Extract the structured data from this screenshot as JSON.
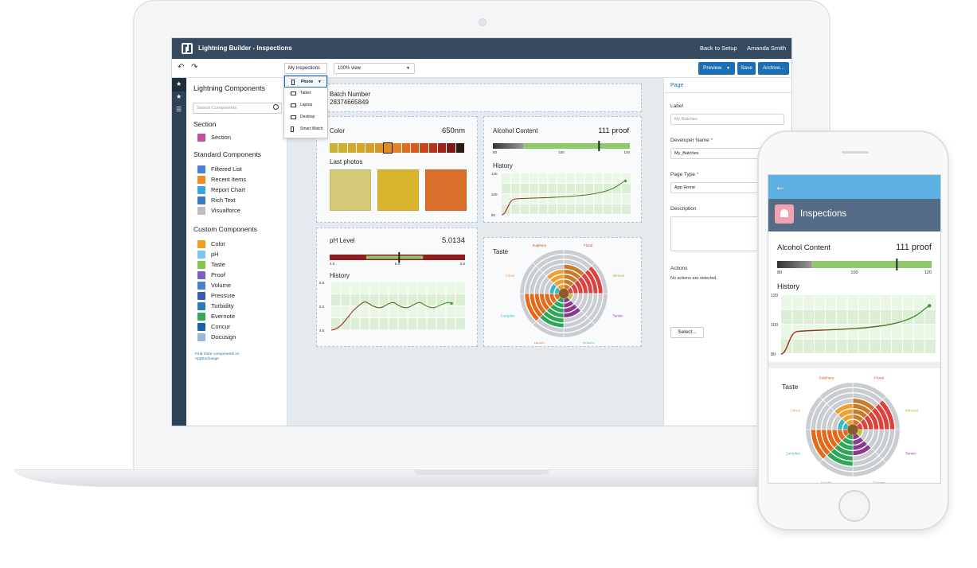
{
  "app": {
    "title": "Lightning Builder - Inspections",
    "back_to_setup": "Back to Setup",
    "user": "Amanda Smith"
  },
  "toolbar": {
    "context_select": "My Inspections",
    "view_select": "100% view",
    "preview_label": "Preview",
    "save_label": "Save",
    "archive_label": "Archive..."
  },
  "device_menu": {
    "items": [
      "Phone",
      "Tablet",
      "Laptop",
      "Desktop",
      "Smart Watch"
    ],
    "selected": "Phone"
  },
  "components": {
    "title": "Lightning Components",
    "search_placeholder": "Search Components",
    "section_heading": "Section",
    "section_items": [
      {
        "label": "Section",
        "color": "#c64fa6"
      }
    ],
    "standard_heading": "Standard Components",
    "standard_items": [
      {
        "label": "Filtered List",
        "color": "#4a7fd1"
      },
      {
        "label": "Recent Items",
        "color": "#f08a24"
      },
      {
        "label": "Report Chart",
        "color": "#3aa5dd"
      },
      {
        "label": "Rich Text",
        "color": "#3b79c5"
      },
      {
        "label": "Visualforce",
        "color": "#bdbdbd"
      }
    ],
    "custom_heading": "Custom Components",
    "custom_items": [
      {
        "label": "Color",
        "color": "#f29c1f"
      },
      {
        "label": "pH",
        "color": "#7ac8ea"
      },
      {
        "label": "Taste",
        "color": "#8bc34a"
      },
      {
        "label": "Proof",
        "color": "#7b5fc7"
      },
      {
        "label": "Volume",
        "color": "#4a7fd1"
      },
      {
        "label": "Pressure",
        "color": "#3b5ab8"
      },
      {
        "label": "Turbidity",
        "color": "#2e7bb8"
      },
      {
        "label": "Evernote",
        "color": "#3aa65a"
      },
      {
        "label": "Concur",
        "color": "#1e5fa8"
      },
      {
        "label": "Docusign",
        "color": "#9bb7d6"
      }
    ],
    "appexchange_link_line1": "Find more components on",
    "appexchange_link_line2": "AppExchange"
  },
  "batch": {
    "label": "Batch Number",
    "value": "28374665849"
  },
  "color_card": {
    "title": "Color",
    "value": "650nm",
    "swatches": [
      "#c8b432",
      "#cdb030",
      "#d1ab2e",
      "#d5a52c",
      "#d99e2a",
      "#dc9628",
      "#de8d26",
      "#e08424",
      "#dc6e22",
      "#d45a20",
      "#c8461e",
      "#b5341c",
      "#9c2419",
      "#7e1a16",
      "#2b1b12"
    ],
    "selected_index": 6,
    "photos_label": "Last photos",
    "photos": [
      "#d4c976",
      "#d9b42f",
      "#d96e28"
    ]
  },
  "alcohol_card": {
    "title": "Alcohol Content",
    "value": "111 proof",
    "gauge": {
      "min": 80,
      "mid": 100,
      "max": 120,
      "value": 111,
      "good_from": 89,
      "good_to": 120
    },
    "history_label": "History",
    "history_ticks": [
      "120",
      "100",
      "80"
    ]
  },
  "ph_card": {
    "title": "pH Level",
    "value": "5.0134",
    "gauge": {
      "min": 4.5,
      "mid": 5.0,
      "max": 5.5,
      "value": 5.0134,
      "min_label": "4.5",
      "mid_label": "5.0",
      "max_label": "5.5"
    },
    "history_label": "History",
    "history_ticks": [
      "5.5",
      "5.0",
      "4.5"
    ]
  },
  "taste_card": {
    "title": "Taste",
    "labels": [
      {
        "text": "Sulphury",
        "color": "#d35400"
      },
      {
        "text": "Floral",
        "color": "#e03a3a"
      },
      {
        "text": "Mineral",
        "color": "#a6c23a"
      },
      {
        "text": "Tannic",
        "color": "#9b3fa8"
      },
      {
        "text": "Grassy",
        "color": "#2eaa4f"
      },
      {
        "text": "Heady",
        "color": "#e46a1a"
      },
      {
        "text": "Complex",
        "color": "#3ab7c8"
      },
      {
        "text": "Citrus",
        "color": "#f0a030"
      }
    ]
  },
  "properties": {
    "tab": "Page",
    "label_label": "Label",
    "label_placeholder": "My Batches",
    "dev_name_label": "Developer Name",
    "dev_name_value": "My_Batches",
    "page_type_label": "Page Type",
    "page_type_value": "App Home",
    "description_label": "Description",
    "actions_label": "Actions",
    "actions_empty": "No actions are selected.",
    "select_button": "Select...",
    "required_mark": "*"
  },
  "phone": {
    "header_title": "Inspections",
    "alcohol_title": "Alcohol Content",
    "alcohol_value": "111 proof",
    "gauge_ticks": [
      "80",
      "100",
      "120"
    ],
    "history_label": "History",
    "history_ticks": [
      "120",
      "100",
      "80"
    ],
    "taste_title": "Taste"
  }
}
